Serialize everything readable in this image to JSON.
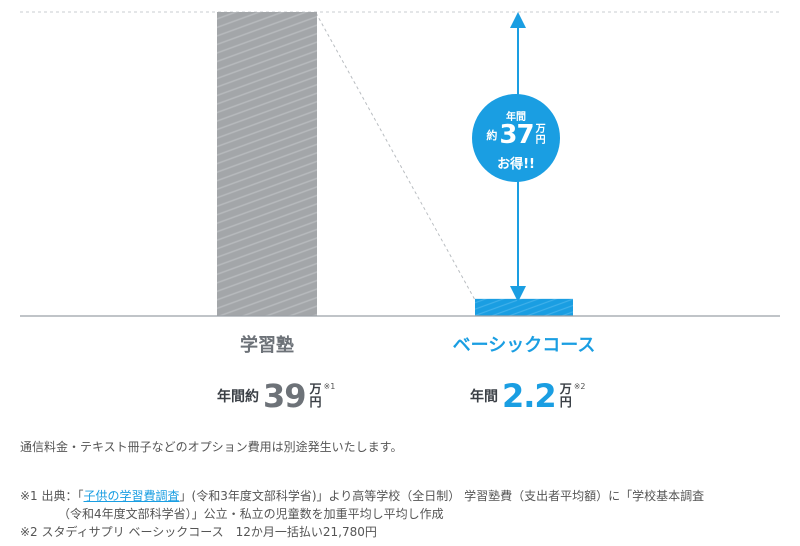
{
  "chart_data": {
    "type": "bar",
    "categories": [
      "学習塾",
      "ベーシックコース"
    ],
    "values": [
      39,
      2.2
    ],
    "unit": "万円",
    "colors": {
      "juku": "#a3a6a9",
      "basic": "#1a9ee2",
      "axis": "#9aa0a6"
    }
  },
  "bars": {
    "juku": {
      "label": "学習塾",
      "price_prefix": "年間約",
      "price_value": "39",
      "unit_top": "万",
      "unit_bottom": "円",
      "note": "※1"
    },
    "basic": {
      "label": "ベーシックコース",
      "price_prefix": "年間",
      "price_value": "2.2",
      "unit_top": "万",
      "unit_bottom": "円",
      "note": "※2"
    }
  },
  "savings": {
    "line1": "年間",
    "prefix": "約",
    "value": "37",
    "unit_top": "万",
    "unit_bottom": "円",
    "line3": "お得!!"
  },
  "notes": {
    "option_fee": "通信料金・テキスト冊子などのオプション費用は別途発生いたします。",
    "n1_a": "※1 出典：「",
    "n1_link": "子供の学習費調査",
    "n1_b": "」(令和3年度文部科学省)」より高等学校（全日制） 学習塾費（支出者平均額）に「学校基本調査",
    "n1_c": "（令和4年度文部科学省）」公立・私立の児童数を加重平均し平均し作成",
    "n2": "※2 スタディサプリ ベーシックコース　12か月一括払い21,780円"
  }
}
